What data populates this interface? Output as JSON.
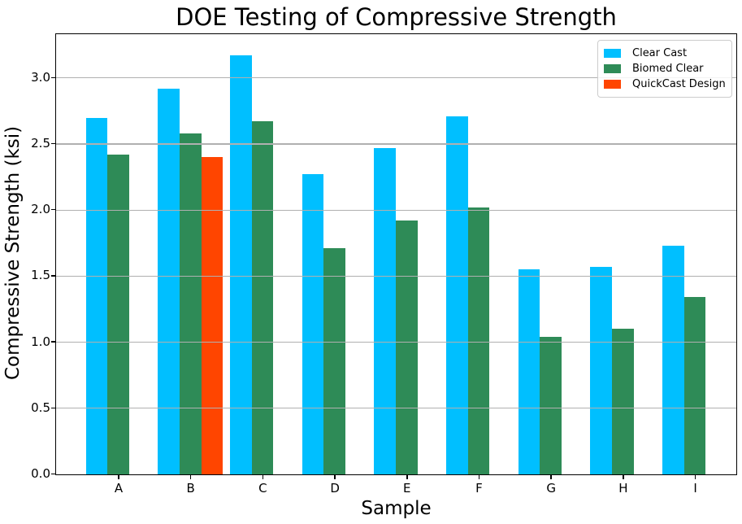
{
  "chart_data": {
    "type": "bar",
    "title": "DOE Testing of Compressive Strength",
    "xlabel": "Sample",
    "ylabel": "Compressive Strength (ksi)",
    "categories": [
      "A",
      "B",
      "C",
      "D",
      "E",
      "F",
      "G",
      "H",
      "I"
    ],
    "series": [
      {
        "name": "Clear Cast",
        "color": "#00BFFF",
        "values": [
          2.7,
          2.92,
          3.17,
          2.27,
          2.47,
          2.71,
          1.55,
          1.57,
          1.73
        ]
      },
      {
        "name": "Biomed Clear",
        "color": "#2E8B57",
        "values": [
          2.42,
          2.58,
          2.67,
          1.71,
          1.92,
          2.02,
          1.04,
          1.1,
          1.34
        ]
      },
      {
        "name": "QuickCast Design",
        "color": "#FF4500",
        "values": [
          null,
          2.4,
          null,
          null,
          null,
          null,
          null,
          null,
          null
        ]
      }
    ],
    "ylim": [
      0,
      3.325
    ],
    "yticks": [
      0.0,
      0.5,
      1.0,
      1.5,
      2.0,
      2.5,
      3.0
    ],
    "ytick_labels": [
      "0.0",
      "0.5",
      "1.0",
      "1.5",
      "2.0",
      "2.5",
      "3.0"
    ],
    "grid": "horizontal",
    "grid_color": "#b0b0b0",
    "legend_position": "upper right",
    "bar_group_offsets": [
      -0.3,
      0.0,
      0.3
    ],
    "bar_width_units": 0.3
  }
}
